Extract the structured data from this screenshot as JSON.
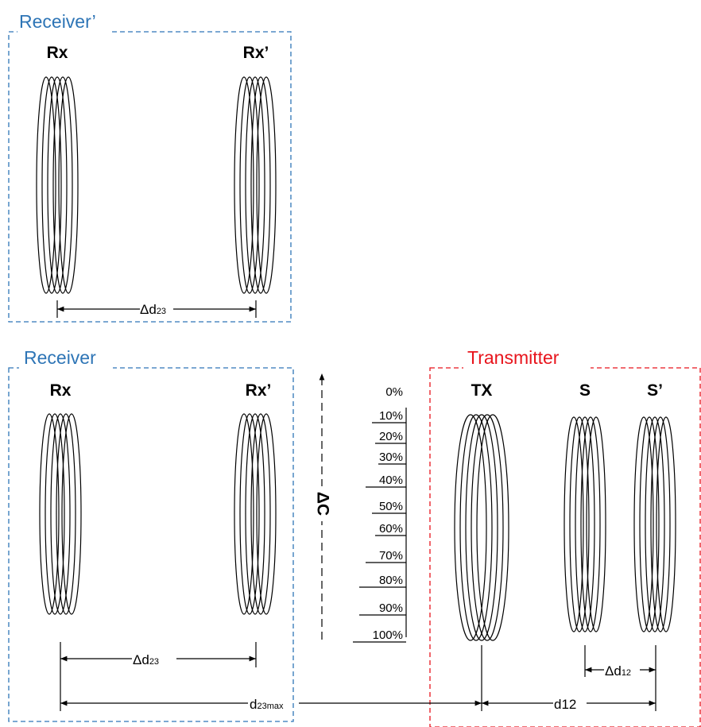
{
  "receiver_prime": {
    "title": "Receiver’",
    "rx_label": "Rx",
    "rxp_label": "Rx’",
    "dim_delta": "Δd",
    "dim_sub": "23"
  },
  "receiver": {
    "title": "Receiver",
    "rx_label": "Rx",
    "rxp_label": "Rx’",
    "dim_delta": "Δd",
    "dim_sub": "23"
  },
  "transmitter": {
    "title": "Transmitter",
    "tx_label": "TX",
    "s_label": "S",
    "sp_label": "S’",
    "dim_delta": "Δd",
    "dim_sub": "12"
  },
  "delta_c_label": "ΔC",
  "d23max": {
    "main": "d",
    "sub": "23max"
  },
  "d12_label": "d12",
  "percent_scale": [
    "0%",
    "10%",
    "20%",
    "30%",
    "40%",
    "50%",
    "60%",
    "70%",
    "80%",
    "90%",
    "100%"
  ],
  "colors": {
    "receiver_frame": "#2e75b6",
    "transmitter_frame": "#e8141c",
    "receiver_text": "#2e75b6",
    "transmitter_text": "#e8141c"
  }
}
